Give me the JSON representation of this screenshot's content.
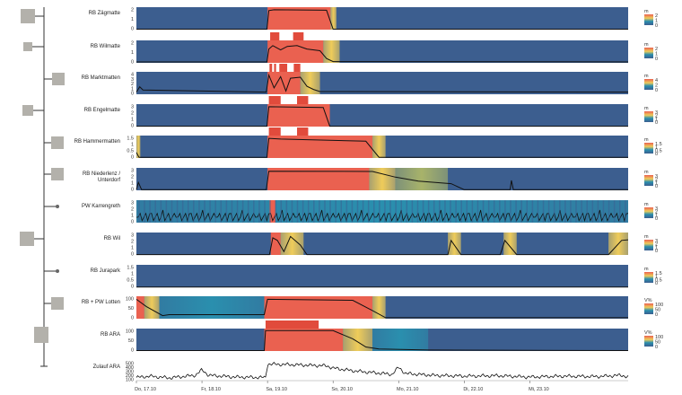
{
  "chart_data": {
    "type": "heatmap",
    "x_axis": {
      "range_days": [
        0,
        7.5
      ],
      "ticks": [
        {
          "day": 0,
          "label": "Do, 17.10"
        },
        {
          "day": 1,
          "label": "Fr, 18.10"
        },
        {
          "day": 2,
          "label": "Sa, 19.10"
        },
        {
          "day": 3,
          "label": "So, 20.10"
        },
        {
          "day": 4,
          "label": "Mo, 21.10"
        },
        {
          "day": 5,
          "label": "Di, 22.10"
        },
        {
          "day": 6,
          "label": "Mi, 23.10"
        }
      ]
    },
    "colors": {
      "low": "#3c5e8f",
      "teal": "#2a8fae",
      "yellow": "#efcc5a",
      "red": "#ea6150",
      "olive": "#a8b36a",
      "line": "#111111",
      "alarm": "#e14b3c"
    },
    "rows": [
      {
        "name": "RB Zägmatte",
        "unit": "m",
        "y_ticks": [
          "2",
          "1",
          "0"
        ],
        "ymax": 2.6,
        "bands": [
          {
            "from": 2.0,
            "to": 2.96,
            "color": "red"
          },
          {
            "from": 2.96,
            "to": 3.05,
            "color": "yellow"
          }
        ],
        "alarms": [],
        "level": [
          [
            0,
            0.05
          ],
          [
            1.99,
            0.05
          ],
          [
            2.02,
            2.2
          ],
          [
            2.1,
            2.3
          ],
          [
            2.9,
            2.25
          ],
          [
            3.0,
            0.05
          ],
          [
            7.5,
            0.05
          ]
        ],
        "legend": [
          "2",
          "1",
          "0"
        ]
      },
      {
        "name": "RB Wilmatte",
        "unit": "m",
        "y_ticks": [
          "2",
          "1",
          "0"
        ],
        "ymax": 2.6,
        "bands": [
          {
            "from": 2.0,
            "to": 2.85,
            "color": "red"
          },
          {
            "from": 2.85,
            "to": 3.1,
            "color": "yellow"
          }
        ],
        "alarms": [
          {
            "from": 2.04,
            "to": 2.18
          },
          {
            "from": 2.39,
            "to": 2.55
          }
        ],
        "level": [
          [
            0,
            0.1
          ],
          [
            1.99,
            0.1
          ],
          [
            2.02,
            1.6
          ],
          [
            2.08,
            2.0
          ],
          [
            2.2,
            1.5
          ],
          [
            2.3,
            1.9
          ],
          [
            2.45,
            2.0
          ],
          [
            2.6,
            1.6
          ],
          [
            2.8,
            1.4
          ],
          [
            2.9,
            0.5
          ],
          [
            3.0,
            0.15
          ],
          [
            7.5,
            0.1
          ]
        ],
        "legend": [
          "2",
          "1",
          "0"
        ]
      },
      {
        "name": "RB Marktmatten",
        "unit": "m",
        "y_ticks": [
          "4",
          "3",
          "2",
          "1",
          "0"
        ],
        "ymax": 4.2,
        "bands": [
          {
            "from": 2.0,
            "to": 2.5,
            "color": "red"
          },
          {
            "from": 2.5,
            "to": 2.8,
            "color": "yellow"
          },
          {
            "from": 4.55,
            "to": 4.8,
            "color": "low"
          }
        ],
        "alarms": [
          {
            "from": 2.03,
            "to": 2.07
          },
          {
            "from": 2.1,
            "to": 2.13
          },
          {
            "from": 2.18,
            "to": 2.3
          },
          {
            "from": 2.4,
            "to": 2.5
          }
        ],
        "level": [
          [
            0,
            0.4
          ],
          [
            0.05,
            1.4
          ],
          [
            0.1,
            0.8
          ],
          [
            1.98,
            0.4
          ],
          [
            2.02,
            3.6
          ],
          [
            2.1,
            1.2
          ],
          [
            2.2,
            3.3
          ],
          [
            2.28,
            0.6
          ],
          [
            2.35,
            3.0
          ],
          [
            2.5,
            3.2
          ],
          [
            2.6,
            1.5
          ],
          [
            2.7,
            0.9
          ],
          [
            2.8,
            0.5
          ],
          [
            7.5,
            0.4
          ]
        ],
        "legend": [
          "4",
          "2",
          "0"
        ]
      },
      {
        "name": "RB Engelmatte",
        "unit": "m",
        "y_ticks": [
          "3",
          "2",
          "1",
          "0"
        ],
        "ymax": 3.4,
        "bands": [
          {
            "from": 2.0,
            "to": 2.95,
            "color": "red"
          }
        ],
        "alarms": [
          {
            "from": 2.02,
            "to": 2.2
          },
          {
            "from": 2.45,
            "to": 2.62
          }
        ],
        "level": [
          [
            0,
            0.05
          ],
          [
            1.99,
            0.05
          ],
          [
            2.02,
            3.0
          ],
          [
            2.85,
            2.9
          ],
          [
            2.95,
            0.05
          ],
          [
            7.5,
            0.05
          ]
        ],
        "legend": [
          "3",
          "2",
          "1",
          "0"
        ]
      },
      {
        "name": "RB Hammermatten",
        "unit": "m",
        "y_ticks": [
          "1.5",
          "1",
          "0.5",
          "0"
        ],
        "ymax": 1.6,
        "bands": [
          {
            "from": 2.0,
            "to": 3.6,
            "color": "red"
          },
          {
            "from": 3.6,
            "to": 3.8,
            "color": "yellow"
          },
          {
            "from": 0.0,
            "to": 0.06,
            "color": "yellow"
          }
        ],
        "alarms": [
          {
            "from": 2.02,
            "to": 2.2
          },
          {
            "from": 2.45,
            "to": 2.62
          }
        ],
        "level": [
          [
            0,
            0.4
          ],
          [
            0.04,
            0.05
          ],
          [
            1.99,
            0.05
          ],
          [
            2.02,
            1.4
          ],
          [
            2.2,
            1.35
          ],
          [
            3.5,
            1.2
          ],
          [
            3.7,
            0.05
          ],
          [
            7.5,
            0.05
          ]
        ],
        "legend": [
          "1.5",
          "1",
          "0.5",
          "0"
        ]
      },
      {
        "name": "RB Niederlenz / Unterdorf",
        "unit": "m",
        "y_ticks": [
          "3",
          "2",
          "1",
          "0"
        ],
        "ymax": 3.4,
        "bands": [
          {
            "from": 2.0,
            "to": 3.55,
            "color": "red"
          },
          {
            "from": 3.55,
            "to": 3.95,
            "color": "yellow"
          },
          {
            "from": 3.95,
            "to": 4.75,
            "color": "olive"
          }
        ],
        "alarms": [],
        "level": [
          [
            0,
            0.1
          ],
          [
            0.03,
            1.2
          ],
          [
            0.08,
            0.1
          ],
          [
            1.98,
            0.1
          ],
          [
            2.02,
            2.9
          ],
          [
            3.6,
            2.85
          ],
          [
            3.95,
            2.0
          ],
          [
            4.3,
            1.4
          ],
          [
            4.8,
            1.0
          ],
          [
            5.0,
            0.1
          ],
          [
            5.7,
            0.1
          ],
          [
            5.72,
            1.5
          ],
          [
            5.75,
            0.1
          ],
          [
            7.5,
            0.1
          ]
        ],
        "legend": [
          "3",
          "2",
          "1",
          "0"
        ]
      },
      {
        "name": "PW Karrengreth",
        "unit": "m",
        "y_ticks": [
          "3",
          "2",
          "1",
          "0"
        ],
        "ymax": 3.4,
        "bands": [
          {
            "from": 0.0,
            "to": 7.5,
            "color": "teal"
          },
          {
            "from": 2.03,
            "to": 2.12,
            "color": "red"
          }
        ],
        "alarms": [],
        "level": [
          [
            0,
            0.7
          ],
          [
            7.5,
            0.7
          ]
        ],
        "sawtooth": true,
        "legend": [
          "3",
          "2",
          "1",
          "0"
        ]
      },
      {
        "name": "RB Wil",
        "unit": "m",
        "y_ticks": [
          "3",
          "2",
          "1",
          "0"
        ],
        "ymax": 3.4,
        "bands": [
          {
            "from": 2.05,
            "to": 2.2,
            "color": "red"
          },
          {
            "from": 2.2,
            "to": 2.55,
            "color": "yellow"
          },
          {
            "from": 4.75,
            "to": 4.95,
            "color": "yellow"
          },
          {
            "from": 5.6,
            "to": 5.8,
            "color": "yellow"
          },
          {
            "from": 7.2,
            "to": 7.5,
            "color": "yellow"
          }
        ],
        "alarms": [],
        "level": [
          [
            0,
            0.05
          ],
          [
            2.03,
            0.05
          ],
          [
            2.08,
            2.6
          ],
          [
            2.15,
            2.2
          ],
          [
            2.25,
            0.5
          ],
          [
            2.35,
            2.8
          ],
          [
            2.5,
            1.5
          ],
          [
            2.6,
            0.05
          ],
          [
            4.75,
            0.05
          ],
          [
            4.8,
            2.2
          ],
          [
            4.95,
            0.05
          ],
          [
            5.55,
            0.05
          ],
          [
            5.62,
            2.2
          ],
          [
            5.8,
            0.05
          ],
          [
            7.2,
            0.05
          ],
          [
            7.4,
            2.2
          ],
          [
            7.5,
            2.3
          ]
        ],
        "legend": [
          "3",
          "2",
          "1",
          "0"
        ]
      },
      {
        "name": "RB Jurapark",
        "unit": "m",
        "y_ticks": [
          "1.5",
          "1",
          "0.5",
          "0"
        ],
        "ymax": 1.6,
        "bands": [],
        "alarms": [],
        "level": [
          [
            0,
            0.02
          ],
          [
            7.5,
            0.02
          ]
        ],
        "legend": [
          "1.5",
          "1",
          "0.5",
          "0"
        ]
      },
      {
        "name": "RB + PW Lotten",
        "unit": "V%",
        "y_ticks": [
          "100",
          "50",
          "0"
        ],
        "ymax": 110,
        "bands": [
          {
            "from": 0.0,
            "to": 0.12,
            "color": "red"
          },
          {
            "from": 0.12,
            "to": 0.35,
            "color": "yellow"
          },
          {
            "from": 0.35,
            "to": 1.95,
            "color": "teal"
          },
          {
            "from": 1.95,
            "to": 3.6,
            "color": "red"
          },
          {
            "from": 3.6,
            "to": 3.8,
            "color": "yellow"
          }
        ],
        "alarms": [],
        "level": [
          [
            0,
            95
          ],
          [
            0.15,
            60
          ],
          [
            0.4,
            15
          ],
          [
            0.5,
            20
          ],
          [
            1.95,
            20
          ],
          [
            2.0,
            95
          ],
          [
            3.3,
            90
          ],
          [
            3.6,
            40
          ],
          [
            3.8,
            5
          ],
          [
            7.5,
            5
          ]
        ],
        "legend": [
          "100",
          "50",
          "0"
        ]
      },
      {
        "name": "RB ARA",
        "unit": "V%",
        "y_ticks": [
          "100",
          "50",
          "0"
        ],
        "ymax": 110,
        "bands": [
          {
            "from": 1.95,
            "to": 3.15,
            "color": "red"
          },
          {
            "from": 3.15,
            "to": 3.6,
            "color": "yellow"
          },
          {
            "from": 3.6,
            "to": 4.45,
            "color": "teal"
          }
        ],
        "alarms": [
          {
            "from": 1.97,
            "to": 2.78
          }
        ],
        "level": [
          [
            0,
            2
          ],
          [
            1.95,
            2
          ],
          [
            1.97,
            100
          ],
          [
            3.0,
            100
          ],
          [
            3.3,
            60
          ],
          [
            3.5,
            20
          ],
          [
            3.7,
            10
          ],
          [
            4.45,
            5
          ],
          [
            7.5,
            2
          ]
        ],
        "legend": [
          "100",
          "50",
          "0"
        ]
      },
      {
        "name": "Zulauf ARA",
        "unit": "",
        "y_ticks": [
          "500",
          "400",
          "300",
          "200",
          "100"
        ],
        "ymax": 520,
        "kind": "line",
        "level": [
          [
            0,
            150
          ],
          [
            0.2,
            180
          ],
          [
            0.5,
            140
          ],
          [
            0.9,
            200
          ],
          [
            1.0,
            320
          ],
          [
            1.1,
            200
          ],
          [
            1.5,
            160
          ],
          [
            1.97,
            150
          ],
          [
            2.0,
            450
          ],
          [
            2.5,
            430
          ],
          [
            2.9,
            410
          ],
          [
            3.0,
            360
          ],
          [
            3.3,
            300
          ],
          [
            3.6,
            260
          ],
          [
            3.9,
            220
          ],
          [
            4.0,
            380
          ],
          [
            4.1,
            240
          ],
          [
            4.5,
            200
          ],
          [
            5.0,
            180
          ],
          [
            5.5,
            190
          ],
          [
            6.0,
            160
          ],
          [
            6.5,
            180
          ],
          [
            7.0,
            170
          ],
          [
            7.4,
            200
          ],
          [
            7.5,
            160
          ]
        ],
        "legend": []
      }
    ]
  }
}
